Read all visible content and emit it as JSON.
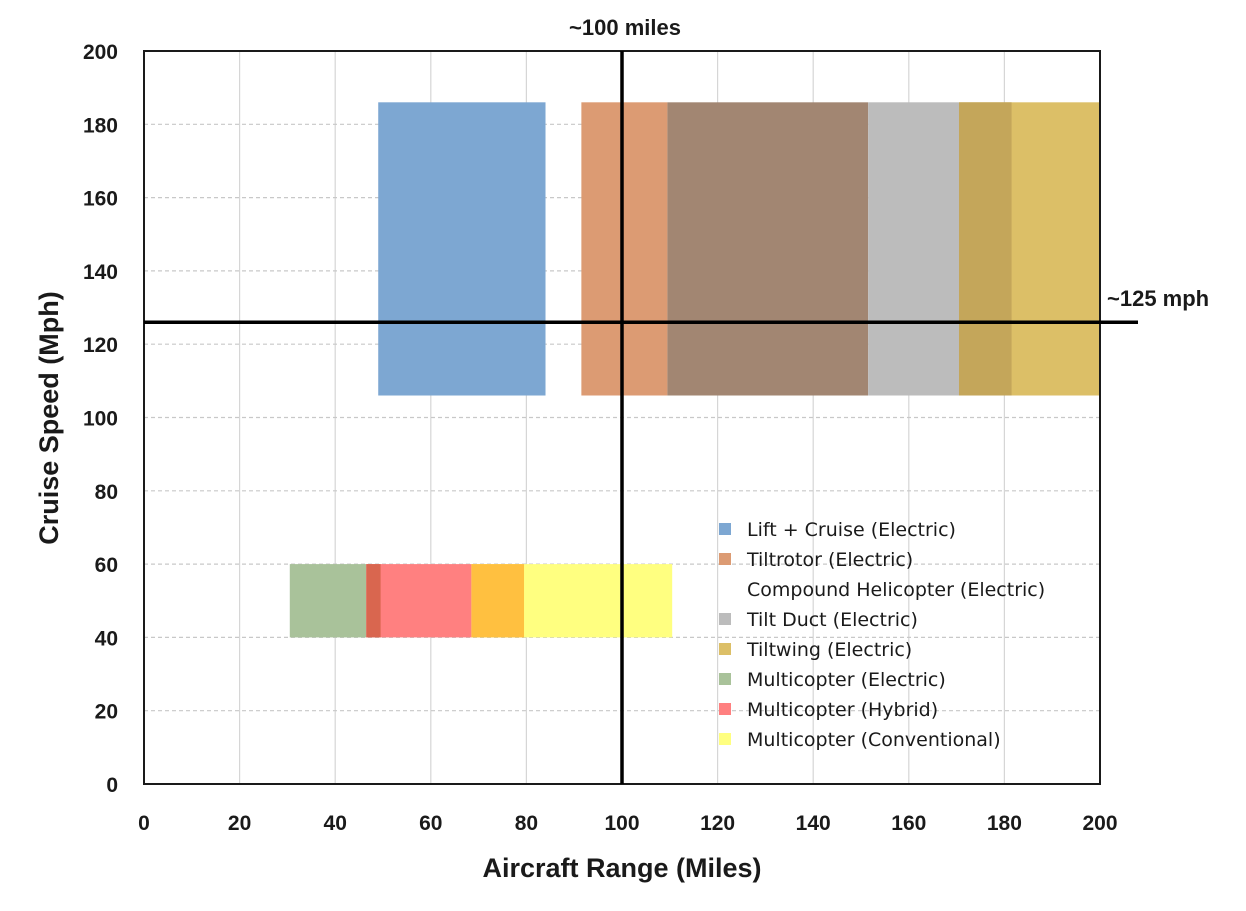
{
  "chart_data": {
    "type": "range-box",
    "title": "",
    "xlabel": "Aircraft Range (Miles)",
    "ylabel": "Cruise Speed (Mph)",
    "xlim": [
      0,
      200
    ],
    "ylim": [
      0,
      200
    ],
    "x_ticks": [
      0,
      20,
      40,
      60,
      80,
      100,
      120,
      140,
      160,
      180,
      200
    ],
    "y_ticks": [
      0,
      20,
      40,
      60,
      80,
      100,
      120,
      140,
      160,
      180,
      200
    ],
    "grid": true,
    "legend_position": "lower-right",
    "series": [
      {
        "name": "Lift + Cruise (Electric)",
        "color": "#7da7d2",
        "x_range": [
          49,
          84
        ],
        "y_range": [
          106,
          186
        ]
      },
      {
        "name": "Tiltrotor (Electric)",
        "color": "#dc9b73",
        "x_range": [
          91.5,
          109.5
        ],
        "y_range": [
          106,
          186
        ]
      },
      {
        "name": "Compound Helicopter (Electric)",
        "color": "#a28672",
        "x_range": [
          109.5,
          151.5
        ],
        "y_range": [
          106,
          186
        ]
      },
      {
        "name": "Tilt Duct (Electric)",
        "color": "#bcbcbc",
        "x_range": [
          151.5,
          170.5
        ],
        "y_range": [
          106,
          186
        ]
      },
      {
        "name": "Tiltwing (Electric)",
        "color": "#dcbf67",
        "x_range": [
          170.5,
          200
        ],
        "y_range": [
          106,
          186
        ]
      },
      {
        "name": "Multicopter (Electric)",
        "color": "#a9c29a",
        "x_range": [
          30.5,
          46.5
        ],
        "y_range": [
          40,
          60
        ]
      },
      {
        "name": "Multicopter (Hybrid)",
        "color": "#ff8080",
        "x_range": [
          46.5,
          68.5
        ],
        "y_range": [
          40,
          60
        ]
      },
      {
        "name": "Multicopter (Conventional)",
        "color": "#ffff80",
        "x_range": [
          68.5,
          110.5
        ],
        "y_range": [
          40,
          60
        ]
      }
    ],
    "overlaps": [
      {
        "x_range": [
          170.5,
          181.5
        ],
        "y_range": [
          106,
          186
        ],
        "color": "#c4a65a"
      },
      {
        "x_range": [
          46.5,
          49.5
        ],
        "y_range": [
          40,
          60
        ],
        "color": "#d9664f"
      },
      {
        "x_range": [
          68.5,
          79.5
        ],
        "y_range": [
          40,
          60
        ],
        "color": "#ffc040"
      }
    ],
    "reference_lines": [
      {
        "axis": "x",
        "value": 100,
        "label": "~100 miles"
      },
      {
        "axis": "y",
        "value": 126,
        "label": "~125 mph"
      }
    ]
  }
}
